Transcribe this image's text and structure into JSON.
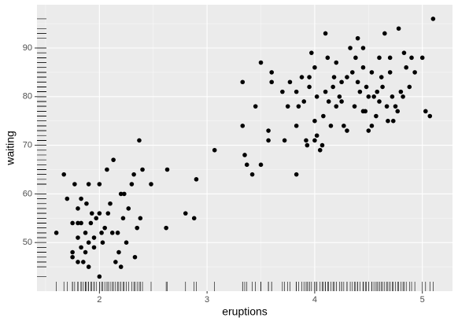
{
  "chart_data": {
    "type": "scatter",
    "xlabel": "eruptions",
    "ylabel": "waiting",
    "x": [
      1.6,
      1.67,
      1.7,
      1.75,
      1.75,
      1.75,
      1.77,
      1.8,
      1.8,
      1.8,
      1.8,
      1.83,
      1.83,
      1.83,
      1.85,
      1.87,
      1.87,
      1.88,
      1.9,
      1.9,
      1.92,
      1.93,
      1.95,
      1.95,
      1.97,
      2.0,
      2.0,
      2.0,
      2.02,
      2.03,
      2.05,
      2.07,
      2.1,
      2.12,
      2.13,
      2.15,
      2.17,
      2.18,
      2.2,
      2.22,
      2.23,
      2.25,
      2.27,
      2.3,
      2.32,
      2.33,
      2.35,
      2.37,
      2.38,
      2.4,
      2.48,
      2.62,
      2.63,
      2.8,
      2.88,
      2.9,
      3.07,
      1.9,
      2.08,
      2.2,
      3.33,
      3.33,
      3.35,
      3.37,
      3.42,
      3.45,
      3.5,
      3.5,
      3.57,
      3.57,
      3.6,
      3.6,
      3.7,
      3.72,
      3.75,
      3.77,
      3.83,
      3.83,
      3.83,
      3.85,
      3.88,
      3.9,
      3.92,
      3.93,
      3.95,
      3.97,
      4.0,
      4.0,
      4.0,
      4.02,
      4.05,
      4.07,
      4.08,
      4.1,
      4.1,
      4.13,
      4.15,
      4.17,
      4.2,
      4.2,
      4.23,
      4.25,
      4.27,
      4.3,
      4.3,
      4.33,
      4.35,
      4.37,
      4.4,
      4.4,
      4.42,
      4.45,
      4.45,
      4.47,
      4.48,
      4.5,
      4.5,
      4.53,
      4.53,
      4.55,
      4.57,
      4.6,
      4.6,
      4.62,
      4.63,
      4.65,
      4.67,
      4.7,
      4.7,
      4.72,
      4.73,
      4.75,
      4.78,
      4.8,
      4.82,
      4.83,
      4.85,
      4.88,
      4.9,
      4.93,
      5.0,
      5.03,
      5.07,
      5.1,
      4.12,
      4.38,
      4.25,
      3.95,
      4.02,
      4.58,
      4.45,
      4.18,
      4.68,
      4.77
    ],
    "values": [
      52,
      64,
      59,
      47,
      48,
      54,
      62,
      51,
      54,
      57,
      46,
      54,
      59,
      49,
      46,
      48,
      52,
      58,
      45,
      50,
      54,
      56,
      51,
      49,
      55,
      56,
      62,
      43,
      52,
      50,
      53,
      65,
      58,
      52,
      67,
      46,
      52,
      48,
      60,
      55,
      60,
      50,
      57,
      62,
      64,
      47,
      53,
      71,
      55,
      65,
      62,
      53,
      65,
      56,
      55,
      63,
      69,
      62,
      56,
      45,
      83,
      74,
      68,
      66,
      64,
      78,
      87,
      66,
      71,
      73,
      85,
      83,
      81,
      71,
      78,
      83,
      64,
      74,
      81,
      78,
      84,
      79,
      71,
      70,
      84,
      89,
      71,
      75,
      86,
      72,
      69,
      70,
      76,
      81,
      93,
      79,
      74,
      82,
      78,
      87,
      80,
      79,
      74,
      73,
      84,
      90,
      85,
      78,
      92,
      83,
      81,
      90,
      77,
      77,
      82,
      80,
      73,
      74,
      85,
      80,
      76,
      88,
      79,
      84,
      82,
      93,
      78,
      88,
      85,
      80,
      75,
      78,
      94,
      81,
      80,
      89,
      86,
      82,
      88,
      85,
      88,
      77,
      76,
      96,
      88,
      88,
      83,
      82,
      80,
      81,
      86,
      84,
      75,
      77
    ],
    "xlim": [
      1.42,
      5.28
    ],
    "ylim": [
      40.0,
      98.9
    ],
    "xticks": [
      2,
      3,
      4,
      5
    ],
    "yticks": [
      50,
      60,
      70,
      80,
      90
    ],
    "grid": true,
    "color": "#000000"
  }
}
